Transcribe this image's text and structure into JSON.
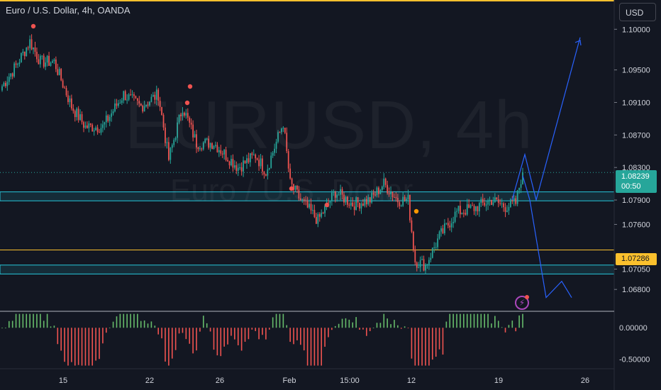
{
  "header": {
    "title": "Euro / U.S. Dollar, 4h, OANDA"
  },
  "watermark": {
    "symbol": "EURUSD, 4h",
    "description": "Euro / U.S. Dollar"
  },
  "currency_button": {
    "label": "USD"
  },
  "colors": {
    "background": "#131722",
    "up": "#26a69a",
    "down": "#ef5350",
    "zone": "#26c6da",
    "level": "#fbc02d",
    "projection": "#2962ff",
    "osc_up": "#66bb6a",
    "osc_down": "#ef5350"
  },
  "badges": {
    "last_price": "1.08239",
    "countdown": "00:50",
    "level_price": "1.07286"
  },
  "chart_data": [
    {
      "type": "candlestick",
      "title": "Euro / U.S. Dollar, 4h, OANDA",
      "x_ticks": [
        "15",
        "22",
        "26",
        "Feb",
        "15:00",
        "12",
        "19",
        "26"
      ],
      "y_ticks": [
        "1.10000",
        "1.09500",
        "1.09100",
        "1.08700",
        "1.08300",
        "1.07900",
        "1.07600",
        "1.07050",
        "1.06800"
      ],
      "ylim": [
        1.0654,
        1.1036
      ],
      "last_price": 1.08239,
      "zones": [
        [
          1.0789,
          1.08
        ],
        [
          1.0699,
          1.071
        ]
      ],
      "level": 1.07286,
      "projection_up": [
        [
          1.079,
          1.0846
        ],
        [
          1.08,
          1.099
        ]
      ],
      "projection_down": [
        [
          1.082,
          1.079
        ],
        [
          1.067,
          1.069,
          1.067
        ]
      ],
      "grid": false,
      "legend": "none"
    },
    {
      "type": "bar",
      "title": "",
      "y_ticks": [
        "0.00000",
        "-0.50000"
      ],
      "ylim": [
        -0.65,
        0.25
      ]
    }
  ]
}
